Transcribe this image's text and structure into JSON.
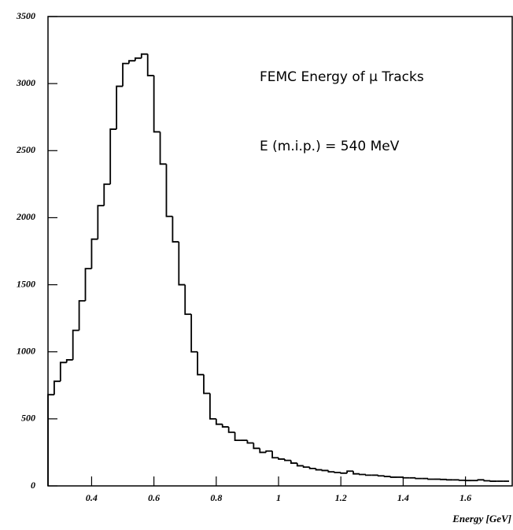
{
  "chart_data": {
    "type": "histogram",
    "annotations": [
      "FEMC Energy of μ Tracks",
      "E (m.i.p.)  =  540 MeV"
    ],
    "x_label": "Energy [GeV]",
    "bins": [
      0.26,
      0.28,
      0.3,
      0.32,
      0.34,
      0.36,
      0.38,
      0.4,
      0.42,
      0.44,
      0.46,
      0.48,
      0.5,
      0.52,
      0.54,
      0.56,
      0.58,
      0.6,
      0.62,
      0.64,
      0.66,
      0.68,
      0.7,
      0.72,
      0.74,
      0.76,
      0.78,
      0.8,
      0.82,
      0.84,
      0.86,
      0.88,
      0.9,
      0.92,
      0.94,
      0.96,
      0.98,
      1.0,
      1.02,
      1.04,
      1.06,
      1.08,
      1.1,
      1.12,
      1.14,
      1.16,
      1.18,
      1.2,
      1.22,
      1.24,
      1.26,
      1.28,
      1.3,
      1.32,
      1.34,
      1.36,
      1.38,
      1.4,
      1.42,
      1.44,
      1.46,
      1.48,
      1.5,
      1.52,
      1.54,
      1.56,
      1.58,
      1.6,
      1.62,
      1.64,
      1.66,
      1.68,
      1.7,
      1.72,
      1.74
    ],
    "values": [
      680,
      780,
      920,
      940,
      1160,
      1380,
      1620,
      1840,
      2090,
      2250,
      2660,
      2980,
      3150,
      3170,
      3190,
      3220,
      3060,
      2640,
      2400,
      2010,
      1820,
      1500,
      1280,
      1000,
      830,
      690,
      500,
      460,
      440,
      400,
      340,
      340,
      320,
      280,
      250,
      260,
      210,
      200,
      190,
      170,
      150,
      140,
      130,
      120,
      115,
      105,
      100,
      95,
      110,
      90,
      85,
      80,
      80,
      75,
      70,
      65,
      65,
      60,
      60,
      55,
      55,
      50,
      50,
      48,
      45,
      45,
      42,
      40,
      40,
      45,
      38,
      35,
      35,
      35
    ],
    "color": "#000000",
    "xlim": [
      0.26,
      1.75
    ],
    "xticks": [
      0.4,
      0.6,
      0.8,
      1,
      1.2,
      1.4,
      1.6
    ],
    "ylim": [
      0,
      3500
    ],
    "yticks": [
      0,
      500,
      1000,
      1500,
      2000,
      2500,
      3000,
      3500
    ]
  }
}
